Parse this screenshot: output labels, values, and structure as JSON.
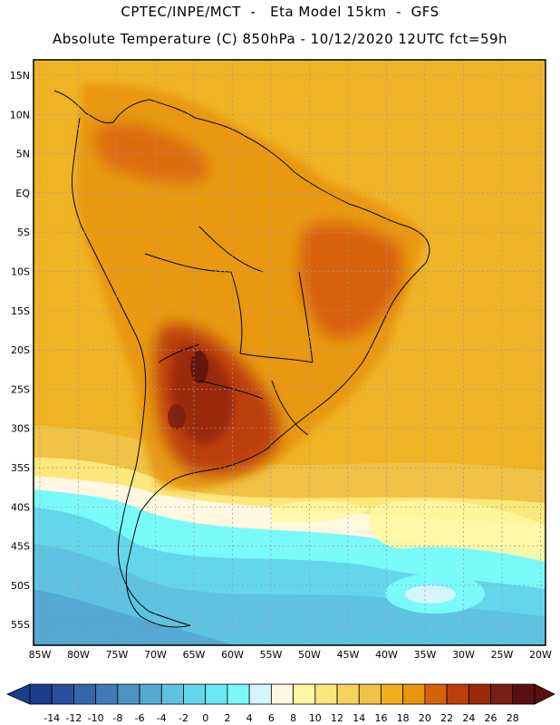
{
  "header": {
    "line1": "CPTEC/INPE/MCT  -   Eta Model 15km  -  GFS",
    "line2": "Absolute Temperature (C) 850hPa - 10/12/2020 12UTC fct=59h"
  },
  "map": {
    "lat_ticks": [
      "15N",
      "10N",
      "5N",
      "EQ",
      "5S",
      "10S",
      "15S",
      "20S",
      "25S",
      "30S",
      "35S",
      "40S",
      "45S",
      "50S",
      "55S"
    ],
    "lon_ticks": [
      "85W",
      "80W",
      "75W",
      "70W",
      "65W",
      "60W",
      "55W",
      "50W",
      "45W",
      "40W",
      "35W",
      "30W",
      "25W",
      "20W"
    ]
  },
  "colorbar": {
    "labels": [
      "-14",
      "-12",
      "-10",
      "-8",
      "-6",
      "-4",
      "-2",
      "0",
      "2",
      "4",
      "6",
      "8",
      "10",
      "12",
      "14",
      "16",
      "18",
      "20",
      "22",
      "24",
      "26",
      "28"
    ],
    "colors": [
      "#1c3c8c",
      "#2a4f9e",
      "#3565ac",
      "#3f7bb9",
      "#4d94c6",
      "#55a9d2",
      "#5ec3e0",
      "#63d6ec",
      "#6ae9f4",
      "#7af9fb",
      "#d6f4fb",
      "#fff7df",
      "#fff7a0",
      "#fbe77a",
      "#f5d35c",
      "#f0c245",
      "#f0ae1c",
      "#e8950c",
      "#d8620a",
      "#bc3f0b",
      "#9b2a0a",
      "#7a1d12",
      "#5a1010"
    ],
    "left_arrow_color": "#1c3c8c",
    "right_arrow_color": "#5a1010"
  }
}
